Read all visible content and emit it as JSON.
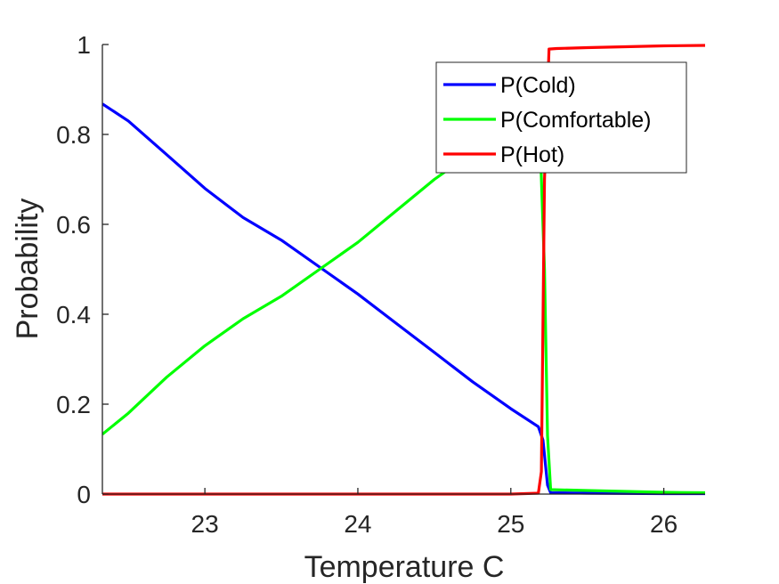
{
  "chart_data": {
    "type": "line",
    "xlabel": "Temperature C",
    "ylabel": "Probability",
    "xlim": [
      22.33,
      26.27
    ],
    "ylim": [
      0,
      1
    ],
    "x_ticks": [
      23,
      24,
      25,
      26
    ],
    "x_tick_labels": [
      "23",
      "24",
      "25",
      "26"
    ],
    "y_ticks": [
      0,
      0.2,
      0.4,
      0.6,
      0.8,
      1
    ],
    "y_tick_labels": [
      "0",
      "0.2",
      "0.4",
      "0.6",
      "0.8",
      "1"
    ],
    "grid": false,
    "legend_position": "top-right",
    "series": [
      {
        "name": "P(Cold)",
        "color": "#0000ff",
        "x": [
          22.33,
          22.5,
          22.75,
          23.0,
          23.25,
          23.5,
          23.75,
          24.0,
          24.25,
          24.5,
          24.75,
          25.0,
          25.18,
          25.21,
          25.24,
          25.26,
          25.5,
          26.0,
          26.27
        ],
        "y": [
          0.868,
          0.83,
          0.755,
          0.68,
          0.615,
          0.565,
          0.505,
          0.445,
          0.38,
          0.315,
          0.25,
          0.19,
          0.15,
          0.12,
          0.02,
          0.003,
          0.002,
          0.001,
          0.001
        ]
      },
      {
        "name": "P(Comfortable)",
        "color": "#00ff00",
        "x": [
          22.33,
          22.5,
          22.75,
          23.0,
          23.25,
          23.5,
          23.75,
          24.0,
          24.25,
          24.5,
          24.75,
          25.0,
          25.15,
          25.19,
          25.22,
          25.24,
          25.26,
          25.5,
          26.0,
          26.27
        ],
        "y": [
          0.133,
          0.18,
          0.26,
          0.33,
          0.39,
          0.44,
          0.5,
          0.56,
          0.63,
          0.7,
          0.76,
          0.81,
          0.84,
          0.8,
          0.5,
          0.13,
          0.01,
          0.008,
          0.004,
          0.003
        ]
      },
      {
        "name": "P(Hot)",
        "color": "#ff0000",
        "x": [
          22.33,
          23.0,
          24.0,
          25.0,
          25.18,
          25.2,
          25.22,
          25.25,
          25.3,
          25.5,
          26.0,
          26.27
        ],
        "y": [
          0,
          0,
          0,
          0,
          0.002,
          0.05,
          0.7,
          0.99,
          0.991,
          0.993,
          0.997,
          0.998
        ]
      }
    ]
  }
}
